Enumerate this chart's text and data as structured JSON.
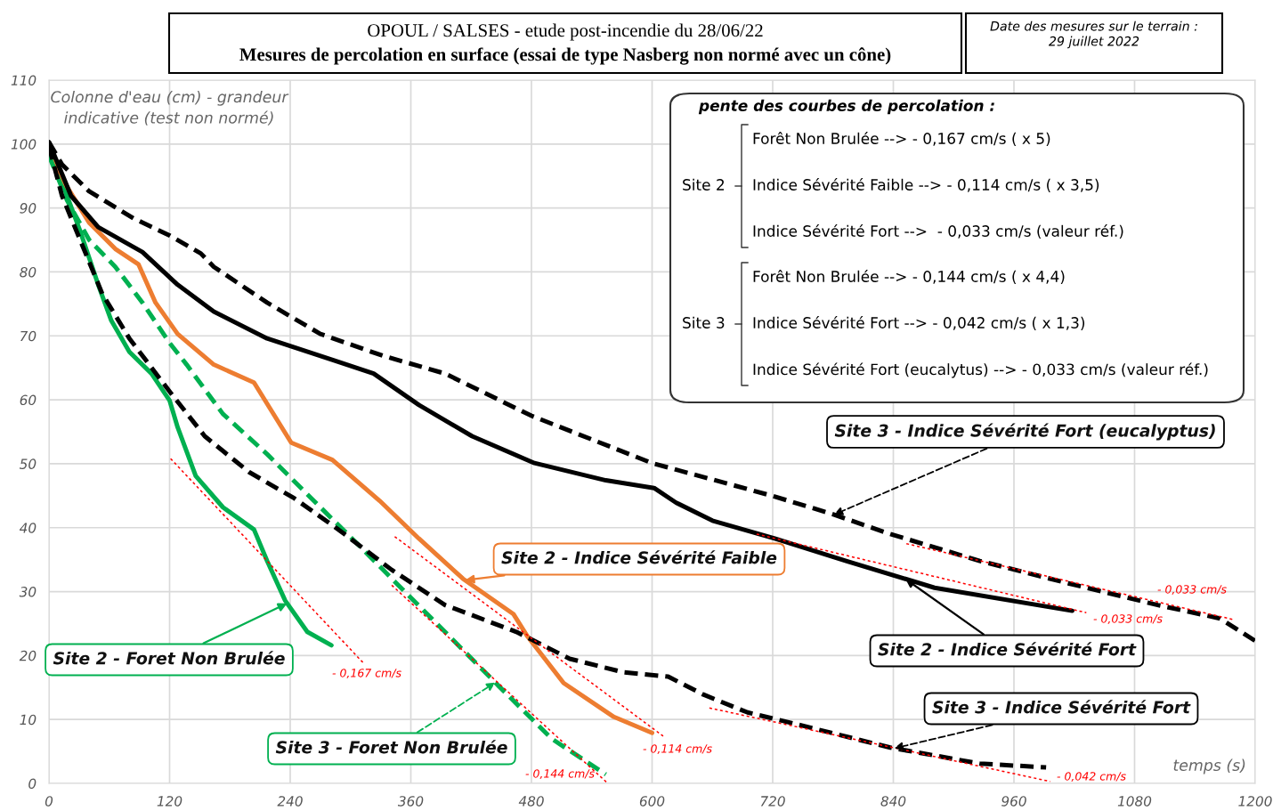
{
  "chart_data": {
    "type": "line",
    "title": "OPOUL / SALSES - etude post-incendie du 28/06/22",
    "subtitle": "Mesures de percolation en surface (essai de type Nasberg non normé avec un cône)",
    "xlabel": "temps (s)",
    "ylabel": "Colonne d'eau (cm) - grandeur\nindicative (test non normé)",
    "xlim": [
      0,
      1200
    ],
    "ylim": [
      0,
      110
    ],
    "xticks": [
      0,
      120,
      240,
      360,
      480,
      600,
      720,
      840,
      960,
      1080,
      1200
    ],
    "yticks": [
      0,
      10,
      20,
      30,
      40,
      50,
      60,
      70,
      80,
      90,
      100,
      110
    ],
    "grid": true,
    "marker": "none",
    "series": [
      {
        "name": "Site 2 - Foret Non Brulée",
        "color": "#00b050",
        "line_style": "solid",
        "x": [
          0,
          13,
          31,
          49,
          62,
          80,
          102,
          120,
          128,
          146,
          173,
          204,
          217,
          235,
          257,
          281
        ],
        "values": [
          98.9,
          94.0,
          86.4,
          78.0,
          72.4,
          67.5,
          64.1,
          59.9,
          55.7,
          48.1,
          43.2,
          39.7,
          34.8,
          28.6,
          23.7,
          21.6
        ]
      },
      {
        "name": "Site 2 - Indice Sévérité Faible",
        "color": "#ed7d31",
        "line_style": "solid",
        "x": [
          0,
          18,
          40,
          66,
          89,
          106,
          128,
          164,
          204,
          241,
          282,
          329,
          368,
          412,
          462,
          476,
          512,
          562,
          600
        ],
        "values": [
          98.2,
          93.3,
          87.7,
          83.6,
          81.2,
          75.2,
          70.3,
          65.5,
          62.7,
          53.3,
          50.6,
          44.2,
          38.3,
          32.0,
          26.5,
          23.0,
          15.7,
          10.4,
          7.9
        ]
      },
      {
        "name": "Site 2 - Indice Sévérité Fort",
        "color": "#000000",
        "line_style": "solid",
        "x": [
          0,
          22,
          49,
          93,
          128,
          164,
          217,
          283,
          323,
          368,
          421,
          483,
          554,
          602,
          624,
          660,
          722,
          793,
          881,
          1018
        ],
        "values": [
          100.3,
          91.9,
          87.0,
          83.1,
          78.0,
          73.8,
          69.6,
          66.2,
          64.1,
          59.2,
          54.3,
          50.1,
          47.4,
          46.2,
          43.9,
          41.1,
          38.3,
          34.8,
          30.6,
          27.0
        ]
      },
      {
        "name": "Site 3 - Foret Non Brulée",
        "color": "#00b050",
        "line_style": "dashed",
        "x": [
          0,
          18,
          40,
          66,
          93,
          120,
          137,
          173,
          217,
          261,
          306,
          347,
          394,
          447,
          500,
          554
        ],
        "values": [
          98.2,
          91.2,
          85.0,
          80.8,
          75.2,
          68.9,
          65.5,
          57.8,
          51.5,
          44.6,
          37.6,
          31.1,
          23.7,
          15.3,
          7.0,
          1.4
        ]
      },
      {
        "name": "Site 3 - Indice Sévérité Fort",
        "color": "#000000",
        "line_style": "dashed",
        "x": [
          0,
          13,
          31,
          53,
          80,
          120,
          155,
          199,
          244,
          288,
          341,
          394,
          465,
          518,
          571,
          616,
          651,
          695,
          748,
          837,
          926,
          992
        ],
        "values": [
          99.6,
          91.9,
          85.0,
          76.6,
          69.6,
          61.3,
          54.3,
          48.7,
          44.6,
          39.7,
          33.4,
          27.9,
          23.7,
          19.5,
          17.4,
          16.7,
          13.9,
          11.1,
          9.1,
          5.6,
          3.1,
          2.5
        ]
      },
      {
        "name": "Site 3 - Indice Sévérité Fort (eucalyptus)",
        "color": "#000000",
        "line_style": "dashed",
        "x": [
          0,
          13,
          40,
          84,
          120,
          151,
          164,
          217,
          270,
          332,
          394,
          480,
          600,
          719,
          778,
          837,
          926,
          1014,
          1103,
          1165,
          1200
        ],
        "values": [
          100.3,
          96.8,
          92.6,
          88.4,
          85.7,
          82.9,
          80.8,
          75.2,
          70.3,
          66.9,
          64.1,
          57.5,
          50.1,
          45.0,
          42.2,
          39.0,
          34.8,
          31.3,
          27.9,
          25.8,
          22.3
        ]
      },
      {
        "color": "#ff0000",
        "line_style": "dotted",
        "x": [
          121,
          313
        ],
        "values": [
          50.8,
          18.8
        ]
      },
      {
        "color": "#ff0000",
        "line_style": "dotted",
        "x": [
          344,
          611
        ],
        "values": [
          38.6,
          7.4
        ]
      },
      {
        "color": "#ff0000",
        "line_style": "dotted",
        "x": [
          341,
          556
        ],
        "values": [
          31.0,
          0
        ]
      },
      {
        "color": "#ff0000",
        "line_style": "dotted",
        "x": [
          704,
          1032
        ],
        "values": [
          39.0,
          26.7
        ]
      },
      {
        "color": "#ff0000",
        "line_style": "dotted",
        "x": [
          853,
          1179
        ],
        "values": [
          37.5,
          25.6
        ]
      },
      {
        "color": "#ff0000",
        "line_style": "dotted",
        "x": [
          657,
          996
        ],
        "values": [
          11.8,
          0.3
        ]
      }
    ],
    "annotations": [
      "Date des mesures sur le terrain :\n29 juillet 2022",
      "pente des courbes de percolation :",
      "Site 2",
      "Forêt Non Brulée --> - 0,167 cm/s ( x 5)",
      "Indice Sévérité Faible --> - 0,114 cm/s ( x 3,5)",
      "Indice Sévérité Fort -->  - 0,033 cm/s (valeur réf.)",
      "Site 3",
      "Forêt Non Brulée --> - 0,144 cm/s ( x 4,4)",
      "Indice Sévérité Fort --> - 0,042 cm/s ( x 1,3)",
      "Indice Sévérité Fort (eucalytus) --> - 0,033 cm/s (valeur réf.)",
      "- 0,167 cm/s",
      "- 0,114 cm/s",
      "- 0,144 cm/s",
      "- 0,033 cm/s",
      "- 0,033 cm/s",
      "- 0,042 cm/s"
    ]
  }
}
